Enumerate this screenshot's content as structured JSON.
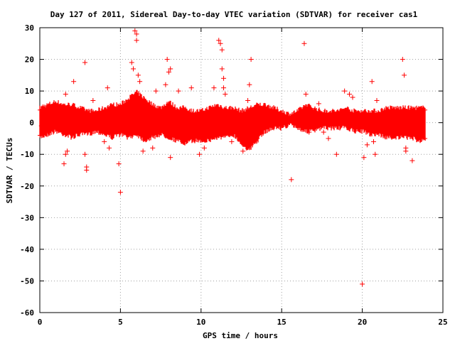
{
  "chart_data": {
    "type": "scatter",
    "title": "Day 127 of 2011, Sidereal Day-to-day VTEC variation (SDTVAR) for receiver cas1",
    "xlabel": "GPS time / hours",
    "ylabel": "SDTVAR / TECUs",
    "xlim": [
      0,
      25
    ],
    "ylim": [
      -60,
      30
    ],
    "x_ticks": [
      0,
      5,
      10,
      15,
      20,
      25
    ],
    "y_ticks": [
      30,
      20,
      10,
      0,
      -10,
      -20,
      -30,
      -40,
      -50,
      -60
    ],
    "x_tick_labels": [
      "0",
      "5",
      "10",
      "15",
      "20",
      "25"
    ],
    "y_tick_labels": [
      "30",
      "20",
      "10",
      "0",
      "-10",
      "-20",
      "-30",
      "-40",
      "-50",
      "-60"
    ],
    "grid": true,
    "marker": "+",
    "color": "#ff0000",
    "dense_band": {
      "x": [
        0.0,
        0.5,
        1.0,
        1.5,
        2.0,
        2.5,
        3.0,
        3.5,
        4.0,
        4.5,
        5.0,
        5.5,
        6.0,
        6.5,
        7.0,
        7.5,
        8.0,
        8.5,
        9.0,
        9.5,
        10.0,
        10.5,
        11.0,
        11.5,
        12.0,
        12.5,
        13.0,
        13.5,
        14.0,
        14.5,
        15.0,
        15.5,
        16.0,
        16.5,
        17.0,
        17.5,
        18.0,
        18.5,
        19.0,
        19.5,
        20.0,
        20.5,
        21.0,
        21.5,
        22.0,
        22.5,
        23.0,
        23.5,
        23.9
      ],
      "low": [
        -4,
        -3,
        -2,
        -3,
        -4,
        -3,
        -3,
        -2,
        -3,
        -4,
        -3,
        -4,
        -3,
        -5,
        -4,
        -3,
        -4,
        -5,
        -6,
        -5,
        -5,
        -5,
        -4,
        -4,
        -3,
        -6,
        -8,
        -5,
        -2,
        -1,
        -1,
        0,
        -1,
        -2,
        -2,
        -1,
        -1,
        -1,
        -1,
        -2,
        -2,
        -3,
        -3,
        -4,
        -4,
        -4,
        -4,
        -5,
        -5
      ],
      "high": [
        4,
        5,
        6,
        5,
        5,
        4,
        3,
        3,
        4,
        5,
        5,
        7,
        9,
        7,
        5,
        4,
        6,
        4,
        4,
        3,
        3,
        4,
        5,
        4,
        4,
        3,
        4,
        5,
        5,
        4,
        3,
        2,
        3,
        5,
        4,
        3,
        3,
        3,
        4,
        3,
        3,
        3,
        3,
        4,
        4,
        4,
        4,
        4,
        4
      ]
    },
    "outliers": [
      {
        "x": 0.1,
        "y": -1
      },
      {
        "x": 0.2,
        "y": 5
      },
      {
        "x": 1.5,
        "y": -13
      },
      {
        "x": 1.6,
        "y": -10
      },
      {
        "x": 1.7,
        "y": -9
      },
      {
        "x": 2.1,
        "y": 13
      },
      {
        "x": 1.6,
        "y": 9
      },
      {
        "x": 2.8,
        "y": 19
      },
      {
        "x": 2.8,
        "y": -10
      },
      {
        "x": 2.9,
        "y": -14
      },
      {
        "x": 2.9,
        "y": -15
      },
      {
        "x": 3.3,
        "y": 7
      },
      {
        "x": 4.0,
        "y": -6
      },
      {
        "x": 4.2,
        "y": 11
      },
      {
        "x": 4.3,
        "y": -8
      },
      {
        "x": 4.9,
        "y": -13
      },
      {
        "x": 5.0,
        "y": -22
      },
      {
        "x": 5.7,
        "y": 19
      },
      {
        "x": 5.8,
        "y": 17
      },
      {
        "x": 5.9,
        "y": 29
      },
      {
        "x": 6.0,
        "y": 26
      },
      {
        "x": 6.0,
        "y": 28
      },
      {
        "x": 6.1,
        "y": 15
      },
      {
        "x": 6.2,
        "y": 13
      },
      {
        "x": 6.4,
        "y": -9
      },
      {
        "x": 7.0,
        "y": -8
      },
      {
        "x": 7.2,
        "y": 10
      },
      {
        "x": 7.8,
        "y": 12
      },
      {
        "x": 7.9,
        "y": 20
      },
      {
        "x": 8.0,
        "y": 16
      },
      {
        "x": 8.1,
        "y": 17
      },
      {
        "x": 8.1,
        "y": -11
      },
      {
        "x": 8.6,
        "y": 10
      },
      {
        "x": 9.4,
        "y": 11
      },
      {
        "x": 9.9,
        "y": -10
      },
      {
        "x": 10.2,
        "y": -8
      },
      {
        "x": 10.8,
        "y": 11
      },
      {
        "x": 11.1,
        "y": 26
      },
      {
        "x": 11.2,
        "y": 25
      },
      {
        "x": 11.3,
        "y": 23
      },
      {
        "x": 11.3,
        "y": 17
      },
      {
        "x": 11.4,
        "y": 14
      },
      {
        "x": 11.4,
        "y": 11
      },
      {
        "x": 11.5,
        "y": 9
      },
      {
        "x": 11.9,
        "y": -6
      },
      {
        "x": 12.6,
        "y": -9
      },
      {
        "x": 12.9,
        "y": 7
      },
      {
        "x": 13.0,
        "y": 12
      },
      {
        "x": 13.1,
        "y": 20
      },
      {
        "x": 15.6,
        "y": -18
      },
      {
        "x": 16.4,
        "y": 25
      },
      {
        "x": 16.5,
        "y": 9
      },
      {
        "x": 16.7,
        "y": -3
      },
      {
        "x": 17.3,
        "y": 6
      },
      {
        "x": 17.6,
        "y": -3
      },
      {
        "x": 17.9,
        "y": -5
      },
      {
        "x": 18.4,
        "y": -10
      },
      {
        "x": 18.9,
        "y": 10
      },
      {
        "x": 19.2,
        "y": 9
      },
      {
        "x": 19.4,
        "y": 8
      },
      {
        "x": 20.0,
        "y": -51
      },
      {
        "x": 20.1,
        "y": -11
      },
      {
        "x": 20.3,
        "y": -7
      },
      {
        "x": 20.6,
        "y": 13
      },
      {
        "x": 20.7,
        "y": -6
      },
      {
        "x": 20.8,
        "y": -10
      },
      {
        "x": 20.9,
        "y": 7
      },
      {
        "x": 22.5,
        "y": 20
      },
      {
        "x": 22.6,
        "y": 15
      },
      {
        "x": 22.7,
        "y": -8
      },
      {
        "x": 22.7,
        "y": -9
      },
      {
        "x": 23.1,
        "y": -12
      },
      {
        "x": 23.2,
        "y": 2
      },
      {
        "x": 23.5,
        "y": -4
      }
    ]
  }
}
